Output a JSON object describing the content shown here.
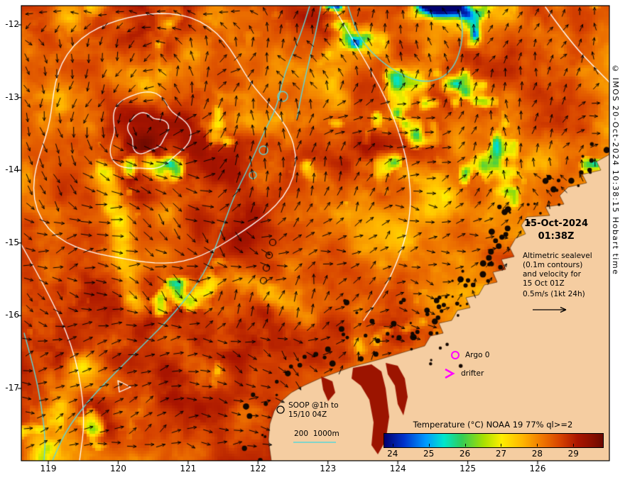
{
  "annotations": {
    "title_date": "15-Oct-2024",
    "title_time": "01:38Z",
    "altimetric_lines": [
      "Altimetric sealevel",
      "(0.1m contours)",
      "and velocity for",
      "15 Oct 01Z",
      "0.5m/s (1kt 24h)"
    ],
    "argo_label": "Argo 0",
    "drifter_label": "drifter",
    "soop_line1": "SOOP @1h to",
    "soop_line2": "15/10 04Z",
    "isobath_label": "200  1000m",
    "credit": "© IMOS 20-Oct-2024 10:38:15 Hobart time"
  },
  "axes": {
    "x_tick_labels": [
      "119",
      "120",
      "121",
      "122",
      "123",
      "124",
      "125",
      "126"
    ],
    "y_tick_labels": [
      "-12",
      "-13",
      "-14",
      "-15",
      "-16",
      "-17"
    ]
  },
  "colorbar": {
    "label": "Temperature (°C) NOAA 19 77% ql>=2",
    "tick_labels": [
      "24",
      "25",
      "26",
      "27",
      "28",
      "29"
    ],
    "min": 23.75,
    "max": 29.8
  },
  "colors": {
    "land": "#f5cda1",
    "sealevel_contour": "#ffffff",
    "isobath_contour": "#5fd6d6",
    "velocity_arrow": "#000000",
    "argo_drifter": "#ff00ff",
    "frame": "#000000",
    "sst_colormap": [
      [
        23.6,
        "#00006e"
      ],
      [
        24.3,
        "#0033cc"
      ],
      [
        24.9,
        "#0099ff"
      ],
      [
        25.4,
        "#00e6cc"
      ],
      [
        25.9,
        "#33cc55"
      ],
      [
        26.5,
        "#a8e000"
      ],
      [
        27.0,
        "#ffee00"
      ],
      [
        27.6,
        "#ffb300"
      ],
      [
        28.1,
        "#f07800"
      ],
      [
        28.6,
        "#d84400"
      ],
      [
        29.1,
        "#aa1500"
      ],
      [
        29.5,
        "#8a0f00"
      ],
      [
        29.75,
        "#6f0a00"
      ]
    ]
  },
  "chart_data": {
    "type": "heatmap",
    "title": "Temperature (°C) NOAA 19 77% ql>=2",
    "datetime": "15-Oct-2024 01:38Z",
    "x_ticks": [
      119,
      120,
      121,
      122,
      123,
      124,
      125,
      126
    ],
    "y_ticks": [
      -12,
      -13,
      -14,
      -15,
      -16,
      -17
    ],
    "colorbar_ticks": [
      24,
      25,
      26,
      27,
      28,
      29
    ],
    "colorbar_range": [
      23.75,
      29.8
    ],
    "overlays": [
      "altimetric sealevel 0.1m contours",
      "velocity arrows, scale 0.5m/s (1kt 24h)",
      "200m and 1000m isobaths",
      "Argo 0",
      "drifter",
      "SOOP @1h to 15/10 04Z"
    ]
  }
}
